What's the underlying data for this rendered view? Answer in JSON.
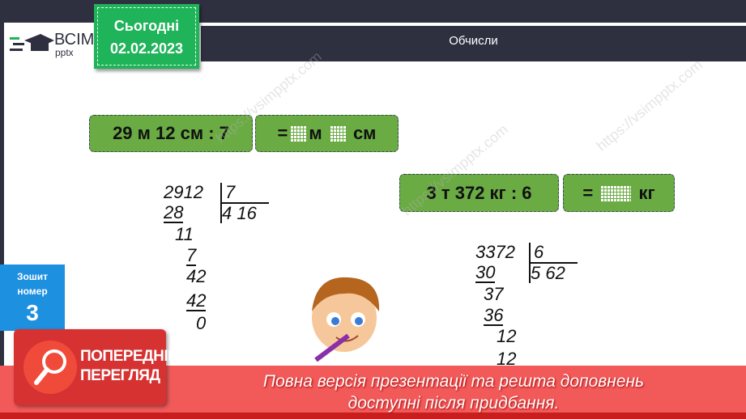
{
  "header": {
    "title": "Обчисли",
    "date_label": "Сьогодні",
    "date": "02.02.2023",
    "logo_big": "ВСІМ",
    "logo_small": "pptx"
  },
  "task1": {
    "expression": "29 м 12 см : 7",
    "answer_eq": "=",
    "unit1": "м",
    "unit2": "см"
  },
  "task2": {
    "expression": "3 т 372 кг : 6",
    "answer_eq": "=",
    "unit1": "кг"
  },
  "division1": {
    "dividend": "2912",
    "divisor": "7",
    "quotient": "4 16",
    "steps": [
      "28",
      "11",
      "7",
      "42",
      "42",
      "0"
    ]
  },
  "division2": {
    "dividend": "3372",
    "divisor": "6",
    "quotient": "5 62",
    "steps": [
      "30",
      "37",
      "36",
      "12",
      "12"
    ]
  },
  "notebook": {
    "label1": "Зошит",
    "label2": "номер",
    "number": "3"
  },
  "preview": {
    "line1": "ПОПЕРЕДНІЙ",
    "line2": "ПЕРЕГЛЯД"
  },
  "banner": {
    "line1": "Повна версія презентації та решта доповнень",
    "line2": "доступні після придбання."
  },
  "watermark": "https://vsimpptx.com",
  "colors": {
    "background": "#2e3040",
    "green_box": "#6aab44",
    "date_tag": "#1fb35a",
    "blue": "#1e90e0",
    "banner": "#f25a5a",
    "preview": "#d63232"
  }
}
